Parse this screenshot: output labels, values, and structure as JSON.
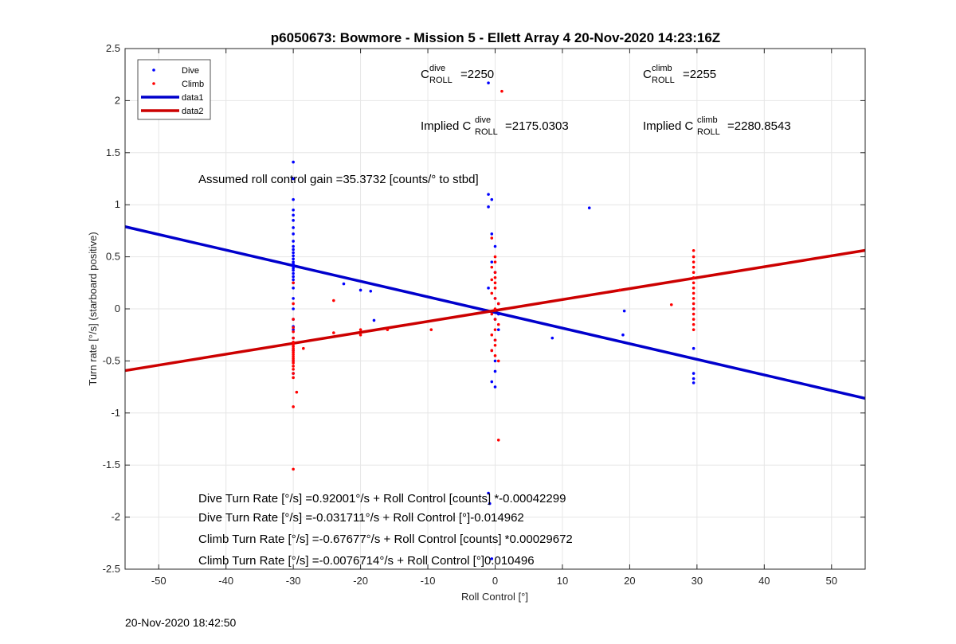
{
  "chart_data": {
    "type": "scatter",
    "title": "p6050673: Bowmore - Mission 5 - Ellett Array 4 20-Nov-2020 14:23:16Z",
    "xlabel": "Roll Control [°]",
    "ylabel": "Turn rate [°/s] (starboard positive)",
    "xlim": [
      -55,
      55
    ],
    "ylim": [
      -2.5,
      2.5
    ],
    "xticks": [
      -50,
      -40,
      -30,
      -20,
      -10,
      0,
      10,
      20,
      30,
      40,
      50
    ],
    "yticks": [
      2.5,
      2,
      1.5,
      1,
      0.5,
      0,
      -0.5,
      -1,
      -1.5,
      -2,
      -2.5
    ],
    "xtick_labels": [
      "-50",
      "-40",
      "-30",
      "-20",
      "-10",
      "0",
      "10",
      "20",
      "30",
      "40",
      "50"
    ],
    "ytick_labels": [
      "2.5",
      "2",
      "1.5",
      "1",
      "0.5",
      "0",
      "-0.5",
      "-1",
      "-1.5",
      "-2",
      "-2.5"
    ],
    "grid": true,
    "legend": {
      "position": "top-left",
      "entries": [
        {
          "label": "Dive",
          "kind": "marker",
          "color": "#0000ff"
        },
        {
          "label": "Climb",
          "kind": "marker",
          "color": "#ff0000"
        },
        {
          "label": "data1",
          "kind": "line",
          "color": "#0000cc"
        },
        {
          "label": "data2",
          "kind": "line",
          "color": "#cc0000"
        }
      ]
    },
    "series": [
      {
        "name": "Dive",
        "kind": "scatter",
        "color": "#0000ff",
        "points": [
          [
            -30,
            1.41
          ],
          [
            -30,
            1.25
          ],
          [
            -30,
            1.05
          ],
          [
            -30,
            0.95
          ],
          [
            -30,
            0.9
          ],
          [
            -30,
            0.85
          ],
          [
            -30,
            0.78
          ],
          [
            -30,
            0.72
          ],
          [
            -30,
            0.65
          ],
          [
            -30,
            0.6
          ],
          [
            -30,
            0.57
          ],
          [
            -30,
            0.54
          ],
          [
            -30,
            0.51
          ],
          [
            -30,
            0.48
          ],
          [
            -30,
            0.45
          ],
          [
            -30,
            0.43
          ],
          [
            -30,
            0.41
          ],
          [
            -30,
            0.39
          ],
          [
            -30,
            0.37
          ],
          [
            -30,
            0.34
          ],
          [
            -30,
            0.31
          ],
          [
            -30,
            0.28
          ],
          [
            -30,
            0.25
          ],
          [
            -30,
            0.2
          ],
          [
            -30,
            0.1
          ],
          [
            -30,
            0.0
          ],
          [
            -30,
            -0.1
          ],
          [
            -30,
            -0.17
          ],
          [
            -30,
            -0.2
          ],
          [
            -30,
            -0.28
          ],
          [
            -30,
            -0.4
          ],
          [
            -30,
            -0.5
          ],
          [
            -30,
            -0.62
          ],
          [
            -22.5,
            0.24
          ],
          [
            -20,
            0.18
          ],
          [
            -18.5,
            0.17
          ],
          [
            -18,
            -0.11
          ],
          [
            -1,
            2.17
          ],
          [
            -1,
            1.1
          ],
          [
            -0.5,
            1.05
          ],
          [
            -1,
            0.98
          ],
          [
            -0.5,
            0.72
          ],
          [
            0,
            0.6
          ],
          [
            -0.5,
            0.45
          ],
          [
            0,
            0.35
          ],
          [
            -1,
            0.2
          ],
          [
            0,
            0.1
          ],
          [
            0.5,
            0.05
          ],
          [
            0.5,
            -0.05
          ],
          [
            0,
            -0.1
          ],
          [
            0.5,
            -0.2
          ],
          [
            0,
            -0.3
          ],
          [
            -0.5,
            -0.4
          ],
          [
            0,
            -0.5
          ],
          [
            0,
            -0.6
          ],
          [
            -0.5,
            -0.7
          ],
          [
            0,
            -0.75
          ],
          [
            -1,
            -1.77
          ],
          [
            -0.8,
            -1.87
          ],
          [
            -0.5,
            -2.4
          ],
          [
            8.5,
            -0.28
          ],
          [
            14,
            0.97
          ],
          [
            19.2,
            -0.02
          ],
          [
            19,
            -0.25
          ],
          [
            29.5,
            0.0
          ],
          [
            29.5,
            -0.38
          ],
          [
            29.5,
            -0.62
          ],
          [
            29.5,
            -0.67
          ],
          [
            29.5,
            -0.71
          ]
        ]
      },
      {
        "name": "Climb",
        "kind": "scatter",
        "color": "#ff0000",
        "points": [
          [
            -30,
            0.25
          ],
          [
            -30,
            0.05
          ],
          [
            -30,
            -0.1
          ],
          [
            -30,
            -0.18
          ],
          [
            -30,
            -0.22
          ],
          [
            -30,
            -0.28
          ],
          [
            -30,
            -0.32
          ],
          [
            -30,
            -0.34
          ],
          [
            -30,
            -0.36
          ],
          [
            -30,
            -0.38
          ],
          [
            -30,
            -0.4
          ],
          [
            -30,
            -0.42
          ],
          [
            -30,
            -0.44
          ],
          [
            -30,
            -0.46
          ],
          [
            -30,
            -0.48
          ],
          [
            -30,
            -0.5
          ],
          [
            -30,
            -0.52
          ],
          [
            -30,
            -0.55
          ],
          [
            -30,
            -0.58
          ],
          [
            -30,
            -0.62
          ],
          [
            -30,
            -0.66
          ],
          [
            -29.5,
            -0.8
          ],
          [
            -30,
            -0.94
          ],
          [
            -30,
            -1.54
          ],
          [
            -28.5,
            -0.38
          ],
          [
            -24,
            0.08
          ],
          [
            -24,
            -0.23
          ],
          [
            -20,
            -0.2
          ],
          [
            -20,
            -0.25
          ],
          [
            -16,
            -0.2
          ],
          [
            -9.5,
            -0.2
          ],
          [
            1,
            2.09
          ],
          [
            -0.5,
            0.68
          ],
          [
            0,
            0.5
          ],
          [
            0,
            0.45
          ],
          [
            -0.5,
            0.4
          ],
          [
            0,
            0.35
          ],
          [
            0,
            0.3
          ],
          [
            -0.5,
            0.28
          ],
          [
            0,
            0.25
          ],
          [
            0,
            0.2
          ],
          [
            -0.5,
            0.15
          ],
          [
            0,
            0.1
          ],
          [
            0.5,
            0.05
          ],
          [
            0,
            0.0
          ],
          [
            -0.5,
            -0.05
          ],
          [
            0,
            -0.1
          ],
          [
            0.5,
            -0.15
          ],
          [
            0,
            -0.2
          ],
          [
            -0.5,
            -0.25
          ],
          [
            0,
            -0.3
          ],
          [
            0,
            -0.35
          ],
          [
            -0.5,
            -0.4
          ],
          [
            0,
            -0.45
          ],
          [
            0.5,
            -0.5
          ],
          [
            0.5,
            -1.26
          ],
          [
            18.5,
            0.18
          ],
          [
            26.2,
            0.04
          ],
          [
            29.5,
            0.56
          ],
          [
            29.5,
            0.5
          ],
          [
            29.5,
            0.45
          ],
          [
            29.5,
            0.4
          ],
          [
            29.5,
            0.35
          ],
          [
            29.5,
            0.3
          ],
          [
            29.5,
            0.25
          ],
          [
            29.5,
            0.2
          ],
          [
            29.5,
            0.15
          ],
          [
            29.5,
            0.1
          ],
          [
            29.5,
            0.05
          ],
          [
            29.5,
            0.0
          ],
          [
            29.5,
            -0.05
          ],
          [
            29.5,
            -0.1
          ],
          [
            29.5,
            -0.15
          ],
          [
            29.5,
            -0.2
          ]
        ]
      },
      {
        "name": "data1",
        "kind": "line",
        "color": "#0000cc",
        "points": [
          [
            -55,
            0.7895
          ],
          [
            55,
            -0.8594
          ]
        ]
      },
      {
        "name": "data2",
        "kind": "line",
        "color": "#cc0000",
        "points": [
          [
            -55,
            -0.5929
          ],
          [
            55,
            0.5617
          ]
        ]
      }
    ],
    "annotations": {
      "c_dive": {
        "base": "C",
        "sup": "dive",
        "sub": "ROLL",
        "value": "=2250"
      },
      "c_climb": {
        "base": "C",
        "sup": "climb",
        "sub": "ROLL",
        "value": "=2255"
      },
      "implied_dive": {
        "prefix": "Implied C",
        "sup": "dive",
        "sub": "ROLL",
        "value": "=2175.0303"
      },
      "implied_climb": {
        "prefix": "Implied C",
        "sup": "climb",
        "sub": "ROLL",
        "value": "=2280.8543"
      },
      "gain": "Assumed roll control gain =35.3732 [counts/° to stbd]",
      "eq1": "Dive Turn Rate [°/s] =0.92001°/s + Roll Control [counts] *-0.00042299",
      "eq2": "Dive Turn Rate [°/s] =-0.031711°/s + Roll Control [°]-0.014962",
      "eq3": "Climb Turn Rate [°/s] =-0.67677°/s + Roll Control [counts] *0.00029672",
      "eq4": "Climb Turn Rate [°/s] =-0.0076714°/s + Roll Control [°]0.010496"
    }
  },
  "footer": {
    "timestamp": "20-Nov-2020 18:42:50"
  }
}
